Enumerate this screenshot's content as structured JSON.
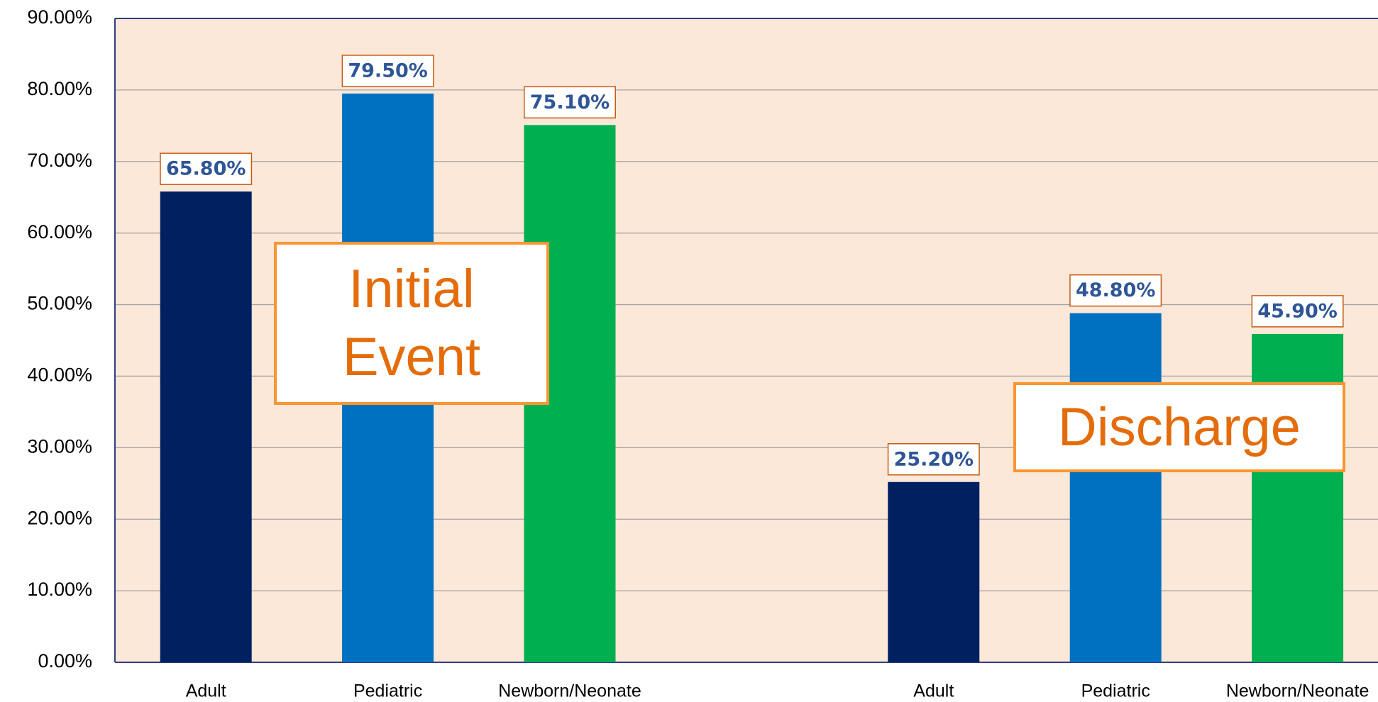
{
  "chart_data": {
    "type": "bar",
    "categories": [
      "Adult",
      "Pediatric",
      "Newborn/Neonate",
      null,
      "Adult",
      "Pediatric",
      "Newborn/Neonate"
    ],
    "values": [
      65.8,
      79.5,
      75.1,
      null,
      25.2,
      48.8,
      45.9
    ],
    "value_labels": [
      "65.80%",
      "79.50%",
      "75.10%",
      null,
      "25.20%",
      "48.80%",
      "45.90%"
    ],
    "colors": [
      "#002060",
      "#0070c0",
      "#00b050",
      null,
      "#002060",
      "#0070c0",
      "#00b050"
    ],
    "ylim": [
      0,
      90
    ],
    "yticks": [
      {
        "value": 0,
        "label": "0.00%"
      },
      {
        "value": 10,
        "label": "10.00%"
      },
      {
        "value": 20,
        "label": "20.00%"
      },
      {
        "value": 30,
        "label": "30.00%"
      },
      {
        "value": 40,
        "label": "40.00%"
      },
      {
        "value": 50,
        "label": "50.00%"
      },
      {
        "value": 60,
        "label": "60.00%"
      },
      {
        "value": 70,
        "label": "70.00%"
      },
      {
        "value": 80,
        "label": "80.00%"
      },
      {
        "value": 90,
        "label": "90.00%"
      }
    ],
    "grid": true,
    "annotations": [
      {
        "text": "Initial Event"
      },
      {
        "text": "Discharge"
      }
    ]
  }
}
